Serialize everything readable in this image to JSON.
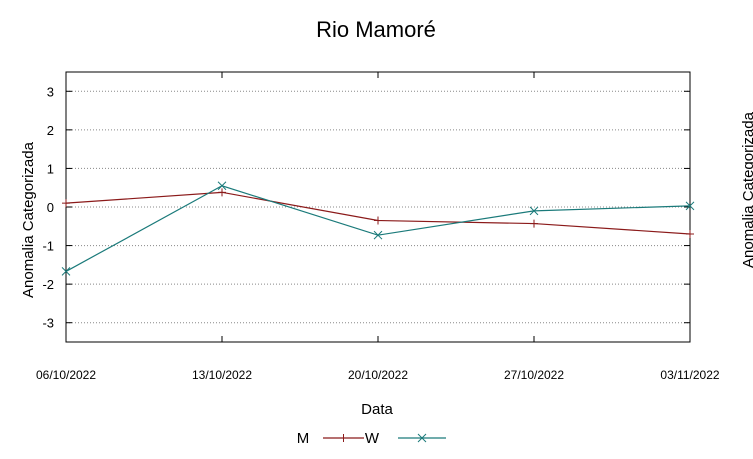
{
  "chart_data": {
    "type": "line",
    "title": "Rio Mamoré",
    "xlabel": "Data",
    "ylabel": "Anomalia Categorizada",
    "right_ylabel_fragment": "Anomalia Categorizada",
    "categories": [
      "06/10/2022",
      "13/10/2022",
      "20/10/2022",
      "27/10/2022",
      "03/11/2022"
    ],
    "yticks": [
      3,
      2,
      1,
      0,
      -1,
      -2,
      -3
    ],
    "ytick_labels": [
      "3",
      "2",
      "1",
      "0",
      "-1",
      "-2",
      "-3"
    ],
    "ylim": [
      -3.5,
      3.5
    ],
    "grid": true,
    "legend_position": "bottom-center",
    "series": [
      {
        "name": "M",
        "color": "#8b1a1a",
        "marker": "plus",
        "values": [
          0.1,
          0.38,
          -0.35,
          -0.43,
          -0.7
        ]
      },
      {
        "name": "W",
        "color": "#1a7a7a",
        "marker": "cross",
        "values": [
          -1.67,
          0.55,
          -0.73,
          -0.1,
          0.03
        ]
      }
    ]
  }
}
